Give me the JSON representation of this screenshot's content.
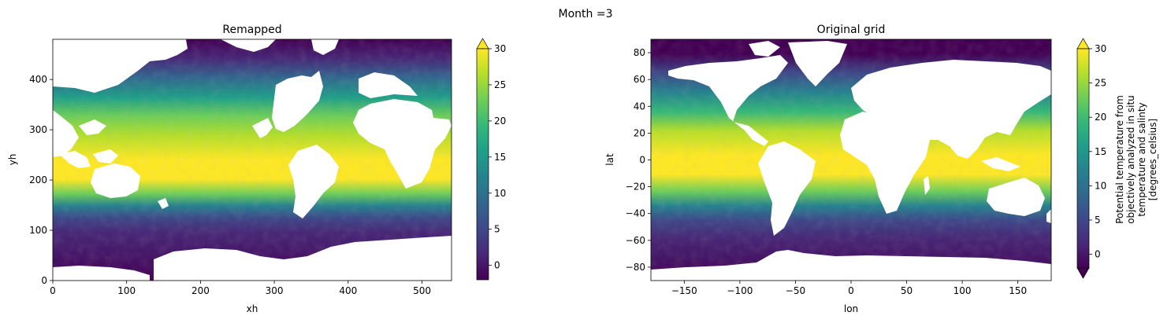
{
  "figure": {
    "suptitle": "Month =3"
  },
  "chart_data": [
    {
      "type": "heatmap",
      "title": "Remapped",
      "xlabel": "xh",
      "ylabel": "yh",
      "xlim": [
        0,
        540
      ],
      "ylim": [
        0,
        480
      ],
      "xticks": [
        0,
        100,
        200,
        300,
        400,
        500
      ],
      "yticks": [
        0,
        100,
        200,
        300,
        400
      ],
      "colormap": "viridis",
      "colorbar": {
        "label": "",
        "vmin": -2,
        "vmax": 30,
        "ticks": [
          0,
          5,
          10,
          15,
          20,
          25,
          30
        ],
        "extend": "max"
      },
      "land_color": "#ffffff",
      "field": "sea surface potential temperature; warm (~28) band near yh 200-300, cold (~-2) below yh 100 and above yh 400"
    },
    {
      "type": "heatmap",
      "title": "Original grid",
      "xlabel": "lon",
      "ylabel": "lat",
      "xlim": [
        -180,
        180
      ],
      "ylim": [
        -90,
        90
      ],
      "xticks": [
        -150,
        -100,
        -50,
        0,
        50,
        100,
        150
      ],
      "yticks": [
        -80,
        -60,
        -40,
        -20,
        0,
        20,
        40,
        60,
        80
      ],
      "colormap": "viridis",
      "colorbar": {
        "label_lines": [
          "Potential temperature from",
          "objectively analyzed in situ",
          "temperature and salinty",
          "[degrees_celsius]"
        ],
        "vmin": -2,
        "vmax": 30,
        "ticks": [
          0,
          5,
          10,
          15,
          20,
          25,
          30
        ],
        "extend": "both"
      },
      "land_color": "#ffffff",
      "field": "sea surface potential temperature; warm (~28) near equator, cold (~-2) poleward of 60"
    }
  ],
  "colors": {
    "viridis": [
      "#440154",
      "#482878",
      "#3e4989",
      "#31688e",
      "#26828e",
      "#1f9e89",
      "#35b779",
      "#6ece58",
      "#b5de2b",
      "#fde725"
    ],
    "land": "#ffffff"
  }
}
